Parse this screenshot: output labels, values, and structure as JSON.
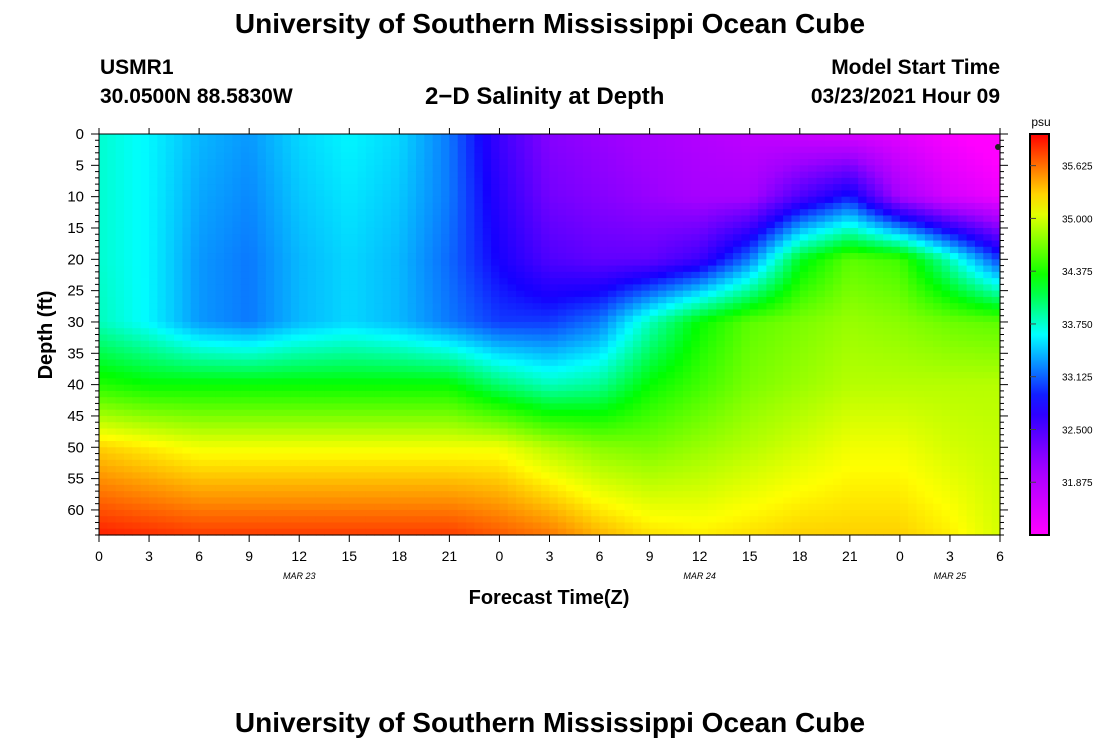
{
  "header": {
    "title": "University of Southern Mississippi Ocean Cube",
    "station_id": "USMR1",
    "coordinates": "30.0500N 88.5830W",
    "subtitle": "2−D Salinity at Depth",
    "model_start_label": "Model Start Time",
    "model_start_value": "03/23/2021 Hour 09"
  },
  "footer": {
    "title": "University of Southern Mississippi Ocean Cube"
  },
  "chart_data": {
    "type": "heatmap",
    "title": "2−D Salinity at Depth",
    "xlabel": "Forecast Time(Z)",
    "ylabel": "Depth (ft)",
    "x_tick_labels": [
      "0",
      "3",
      "6",
      "9",
      "12",
      "15",
      "18",
      "21",
      "0",
      "3",
      "6",
      "9",
      "12",
      "15",
      "18",
      "21",
      "0",
      "3",
      "6"
    ],
    "x_range_hours": [
      0,
      54
    ],
    "date_labels": [
      {
        "text": "MAR 23",
        "hour": 12
      },
      {
        "text": "MAR 24",
        "hour": 36
      },
      {
        "text": "MAR 25",
        "hour": 51
      }
    ],
    "y_ticks": [
      0,
      5,
      10,
      15,
      20,
      25,
      30,
      35,
      40,
      45,
      50,
      55,
      60
    ],
    "y_range_ft": [
      0,
      64
    ],
    "colorbar": {
      "unit": "psu",
      "labels": [
        "35.625",
        "35.000",
        "34.375",
        "33.750",
        "33.125",
        "32.500",
        "31.875"
      ],
      "min": 31.25,
      "max": 36.0
    },
    "depth_profile_ft": [
      0,
      10,
      20,
      30,
      40,
      50,
      64
    ],
    "salinity_hours": [
      0,
      3,
      6,
      9,
      12,
      15,
      18,
      21,
      24,
      27,
      30,
      33,
      36,
      39,
      42,
      45,
      48,
      51,
      54
    ],
    "salinity_psu": [
      [
        33.75,
        33.6,
        33.4,
        33.3,
        33.5,
        33.6,
        33.5,
        33.2,
        32.6,
        32.2,
        32.1,
        32.0,
        31.9,
        31.8,
        31.7,
        31.6,
        31.5,
        31.3,
        31.1
      ],
      [
        33.75,
        33.6,
        33.35,
        33.25,
        33.45,
        33.55,
        33.45,
        33.2,
        32.7,
        32.3,
        32.2,
        32.1,
        32.0,
        32.0,
        32.5,
        32.9,
        32.0,
        31.6,
        31.4
      ],
      [
        33.75,
        33.6,
        33.3,
        33.2,
        33.4,
        33.5,
        33.4,
        33.15,
        32.8,
        32.5,
        32.4,
        32.4,
        32.6,
        33.2,
        34.2,
        34.6,
        34.5,
        33.8,
        33.0
      ],
      [
        33.8,
        33.6,
        33.3,
        33.2,
        33.4,
        33.5,
        33.4,
        33.2,
        33.0,
        33.0,
        33.2,
        33.8,
        34.3,
        34.6,
        34.7,
        34.8,
        34.75,
        34.65,
        34.6
      ],
      [
        34.4,
        34.3,
        34.3,
        34.3,
        34.3,
        34.3,
        34.3,
        34.3,
        34.0,
        33.8,
        33.9,
        34.3,
        34.5,
        34.7,
        34.8,
        34.9,
        34.9,
        34.9,
        34.9
      ],
      [
        35.3,
        35.2,
        35.1,
        35.1,
        35.1,
        35.1,
        35.1,
        35.1,
        35.1,
        34.9,
        34.75,
        34.7,
        34.8,
        34.9,
        35.0,
        35.1,
        35.1,
        35.0,
        34.95
      ],
      [
        35.9,
        35.85,
        35.8,
        35.8,
        35.8,
        35.8,
        35.8,
        35.8,
        35.7,
        35.6,
        35.4,
        35.25,
        35.2,
        35.25,
        35.3,
        35.3,
        35.3,
        35.2,
        35.0
      ]
    ]
  }
}
